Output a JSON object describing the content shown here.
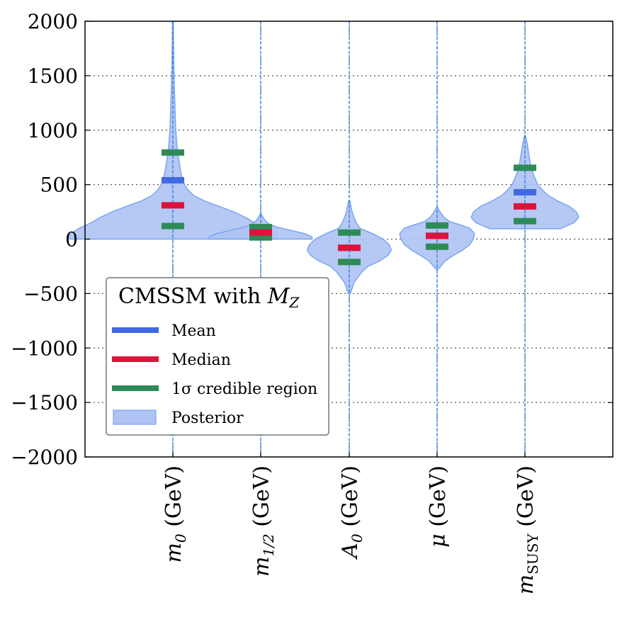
{
  "chart_data": {
    "type": "violin",
    "title": "",
    "xlabel": "",
    "ylabel": "",
    "ylim": [
      -2000,
      2000
    ],
    "yticks": [
      {
        "value": 2000,
        "label": "2000"
      },
      {
        "value": 1500,
        "label": "1500"
      },
      {
        "value": 1000,
        "label": "1000"
      },
      {
        "value": 500,
        "label": "500"
      },
      {
        "value": 0,
        "label": "0"
      },
      {
        "value": -500,
        "label": "−500"
      },
      {
        "value": -1000,
        "label": "−1000"
      },
      {
        "value": -1500,
        "label": "−1500"
      },
      {
        "value": -2000,
        "label": "−2000"
      }
    ],
    "grid": true,
    "categories": [
      {
        "key": "m0",
        "label": "m",
        "sub": "0",
        "unit": "(GeV)",
        "mean": 540,
        "median": 310,
        "ci_low": 120,
        "ci_high": 795,
        "profile": [
          [
            0,
            88
          ],
          [
            20,
            90
          ],
          [
            60,
            86
          ],
          [
            100,
            80
          ],
          [
            150,
            70
          ],
          [
            200,
            62
          ],
          [
            250,
            52
          ],
          [
            300,
            40
          ],
          [
            350,
            27
          ],
          [
            400,
            18
          ],
          [
            450,
            13
          ],
          [
            500,
            10
          ],
          [
            600,
            7
          ],
          [
            800,
            4
          ],
          [
            1000,
            2.5
          ],
          [
            1300,
            1.5
          ],
          [
            1600,
            0.8
          ],
          [
            2000,
            0.3
          ]
        ]
      },
      {
        "key": "m12",
        "label": "m",
        "sub": "1/2",
        "unit": "(GeV)",
        "mean": 60,
        "median": 60,
        "ci_low": 15,
        "ci_high": 110,
        "profile": [
          [
            0,
            44
          ],
          [
            20,
            44
          ],
          [
            50,
            38
          ],
          [
            80,
            26
          ],
          [
            110,
            14
          ],
          [
            140,
            7
          ],
          [
            170,
            4
          ],
          [
            200,
            2
          ],
          [
            220,
            0.8
          ],
          [
            240,
            0.2
          ]
        ]
      },
      {
        "key": "A0",
        "label": "A",
        "sub": "0",
        "unit": "(GeV)",
        "mean": -80,
        "median": -80,
        "ci_low": -210,
        "ci_high": 60,
        "profile": [
          [
            -500,
            1
          ],
          [
            -400,
            4
          ],
          [
            -300,
            11
          ],
          [
            -250,
            16
          ],
          [
            -200,
            26
          ],
          [
            -150,
            33
          ],
          [
            -100,
            36
          ],
          [
            -50,
            34
          ],
          [
            0,
            29
          ],
          [
            50,
            20
          ],
          [
            100,
            9
          ],
          [
            150,
            6
          ],
          [
            200,
            4
          ],
          [
            250,
            2.5
          ],
          [
            300,
            1.5
          ],
          [
            350,
            0.5
          ]
        ]
      },
      {
        "key": "mu",
        "label": "μ",
        "sub": "",
        "unit": "(GeV)",
        "mean": 30,
        "median": 30,
        "ci_low": -70,
        "ci_high": 125,
        "profile": [
          [
            -280,
            0.5
          ],
          [
            -250,
            3
          ],
          [
            -200,
            7
          ],
          [
            -150,
            14
          ],
          [
            -100,
            22
          ],
          [
            -50,
            28
          ],
          [
            0,
            31
          ],
          [
            50,
            32
          ],
          [
            100,
            28
          ],
          [
            130,
            20
          ],
          [
            160,
            11
          ],
          [
            200,
            6
          ],
          [
            250,
            2.5
          ],
          [
            290,
            0.5
          ]
        ]
      },
      {
        "key": "msusy",
        "label": "m",
        "sub": "SUSY",
        "unit": "(GeV)",
        "mean": 430,
        "median": 300,
        "ci_low": 165,
        "ci_high": 655,
        "profile": [
          [
            95,
            30
          ],
          [
            150,
            42
          ],
          [
            200,
            46
          ],
          [
            250,
            44
          ],
          [
            300,
            38
          ],
          [
            350,
            28
          ],
          [
            400,
            20
          ],
          [
            450,
            15
          ],
          [
            500,
            11
          ],
          [
            600,
            7
          ],
          [
            700,
            4.5
          ],
          [
            800,
            3
          ],
          [
            900,
            1.5
          ],
          [
            950,
            0.5
          ]
        ]
      }
    ],
    "legend": {
      "title_text": "CMSSM with ",
      "title_math": "M",
      "title_sub": "Z",
      "placement": "lower-left",
      "entries": [
        {
          "key": "mean",
          "label": "Mean"
        },
        {
          "key": "median",
          "label": "Median"
        },
        {
          "key": "ci",
          "label": "1σ credible region"
        },
        {
          "key": "posterior",
          "label": "Posterior"
        }
      ]
    }
  },
  "colors": {
    "mean": "#4169e1",
    "median": "#dc143c",
    "ci": "#2e8b57",
    "posterior_fill": "#aec2f3",
    "posterior_edge": "#7aa6f0",
    "center_line": "#1f77e0"
  }
}
